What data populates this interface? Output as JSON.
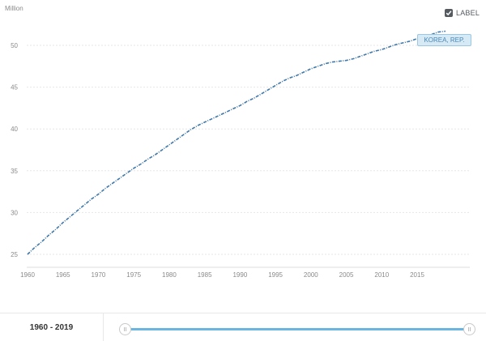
{
  "chart_data": {
    "type": "line",
    "title": "",
    "xlabel": "",
    "ylabel": "Million",
    "xlim": [
      1960,
      2019
    ],
    "ylim": [
      25,
      53
    ],
    "x_ticks": [
      1960,
      1965,
      1970,
      1975,
      1980,
      1985,
      1990,
      1995,
      2000,
      2005,
      2010,
      2015
    ],
    "y_ticks": [
      25,
      30,
      35,
      40,
      45,
      50
    ],
    "grid": true,
    "series": [
      {
        "name": "KOREA, REP.",
        "color": "#3f78aa",
        "x": [
          1960,
          1961,
          1962,
          1963,
          1964,
          1965,
          1966,
          1967,
          1968,
          1969,
          1970,
          1971,
          1972,
          1973,
          1974,
          1975,
          1976,
          1977,
          1978,
          1979,
          1980,
          1981,
          1982,
          1983,
          1984,
          1985,
          1986,
          1987,
          1988,
          1989,
          1990,
          1991,
          1992,
          1993,
          1994,
          1995,
          1996,
          1997,
          1998,
          1999,
          2000,
          2001,
          2002,
          2003,
          2004,
          2005,
          2006,
          2007,
          2008,
          2009,
          2010,
          2011,
          2012,
          2013,
          2014,
          2015,
          2016,
          2017,
          2018,
          2019
        ],
        "values": [
          25.0,
          25.8,
          26.5,
          27.3,
          28.0,
          28.8,
          29.5,
          30.2,
          30.9,
          31.6,
          32.2,
          32.9,
          33.5,
          34.1,
          34.7,
          35.3,
          35.8,
          36.4,
          36.9,
          37.5,
          38.1,
          38.7,
          39.3,
          39.9,
          40.4,
          40.8,
          41.2,
          41.6,
          42.0,
          42.4,
          42.8,
          43.3,
          43.7,
          44.2,
          44.7,
          45.2,
          45.7,
          46.1,
          46.4,
          46.8,
          47.2,
          47.5,
          47.8,
          48.0,
          48.1,
          48.2,
          48.4,
          48.7,
          49.0,
          49.3,
          49.5,
          49.8,
          50.1,
          50.3,
          50.5,
          50.8,
          51.0,
          51.3,
          51.6,
          51.7
        ]
      }
    ]
  },
  "label_toggle": {
    "text": "LABEL",
    "checked": true
  },
  "series_tag": {
    "text": "KOREA, REP."
  },
  "footer": {
    "range_text": "1960 - 2019"
  },
  "slider": {
    "start": 1960,
    "end": 2019
  }
}
